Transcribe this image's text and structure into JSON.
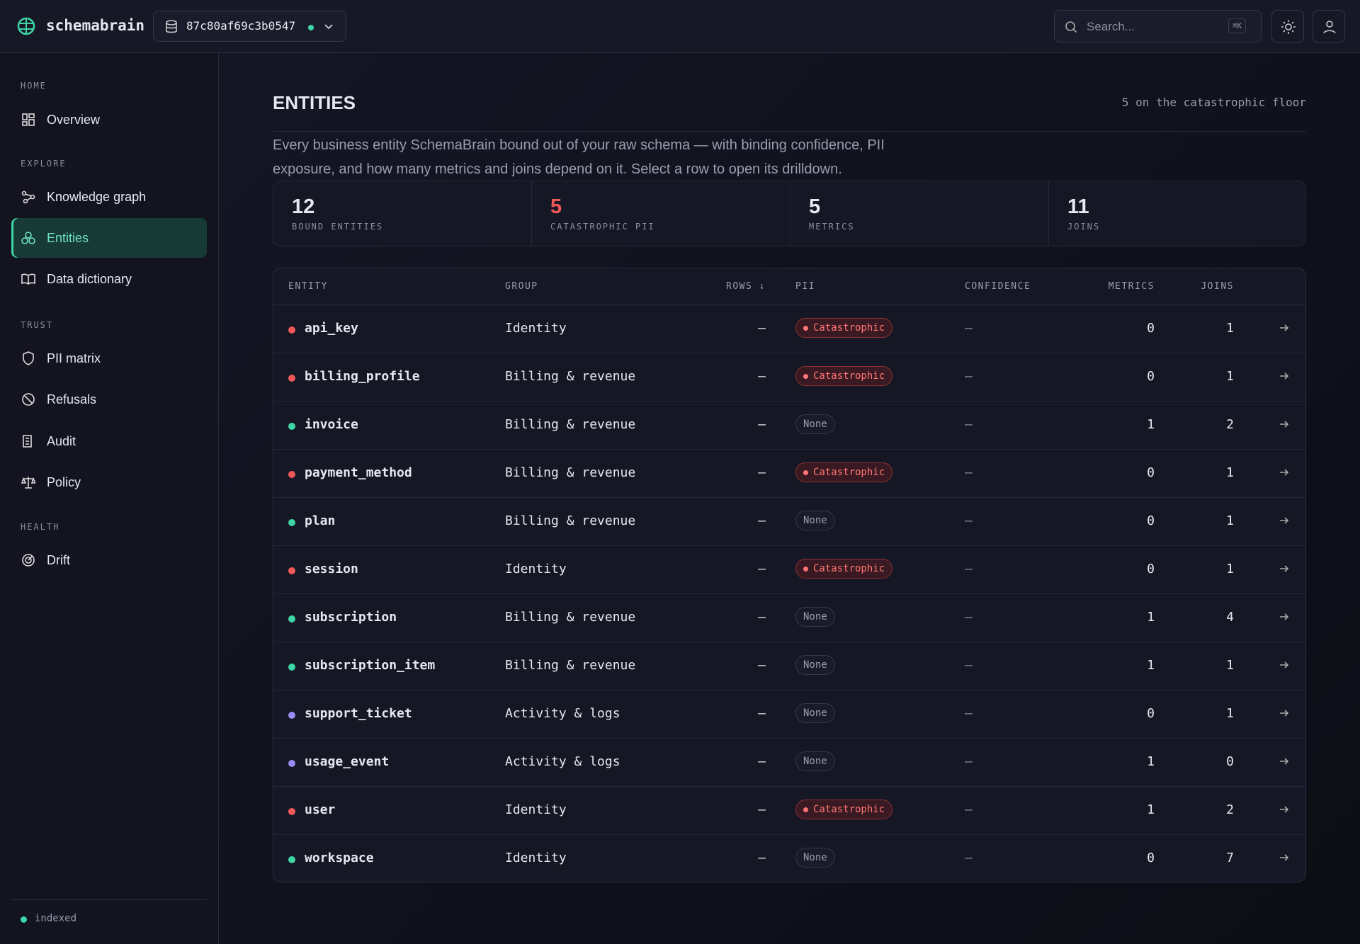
{
  "header": {
    "brand": "schemabrain",
    "database": "87c80af69c3b0547",
    "search_placeholder": "Search...",
    "shortcut": "⌘K"
  },
  "sidebar": {
    "sections": [
      {
        "label": "HOME",
        "items": [
          "Overview"
        ]
      },
      {
        "label": "EXPLORE",
        "items": [
          "Knowledge graph",
          "Entities",
          "Data dictionary"
        ]
      },
      {
        "label": "TRUST",
        "items": [
          "PII matrix",
          "Refusals",
          "Audit",
          "Policy"
        ]
      },
      {
        "label": "HEALTH",
        "items": [
          "Drift"
        ]
      }
    ],
    "status": "indexed"
  },
  "page": {
    "title": "ENTITIES",
    "note": "5 on the catastrophic floor",
    "description": "Every business entity SchemaBrain bound out of your raw schema — with binding confidence, PII exposure, and how many metrics and joins depend on it. Select a row to open its drilldown."
  },
  "stats": [
    {
      "value": "12",
      "label": "BOUND ENTITIES"
    },
    {
      "value": "5",
      "label": "CATASTROPHIC PII",
      "color": "#f0585a"
    },
    {
      "value": "5",
      "label": "METRICS"
    },
    {
      "value": "11",
      "label": "JOINS"
    }
  ],
  "table": {
    "columns": [
      "ENTITY",
      "GROUP",
      "ROWS ↓",
      "PII",
      "CONFIDENCE",
      "METRICS",
      "JOINS"
    ],
    "rows": [
      {
        "dot": "#f0585a",
        "entity": "api_key",
        "group": "Identity",
        "rows": "—",
        "pii": "Catastrophic",
        "confidence": "—",
        "metrics": "0",
        "joins": "1"
      },
      {
        "dot": "#f0585a",
        "entity": "billing_profile",
        "group": "Billing & revenue",
        "rows": "—",
        "pii": "Catastrophic",
        "confidence": "—",
        "metrics": "0",
        "joins": "1"
      },
      {
        "dot": "#3ed6a5",
        "entity": "invoice",
        "group": "Billing & revenue",
        "rows": "—",
        "pii": "None",
        "confidence": "—",
        "metrics": "1",
        "joins": "2"
      },
      {
        "dot": "#f0585a",
        "entity": "payment_method",
        "group": "Billing & revenue",
        "rows": "—",
        "pii": "Catastrophic",
        "confidence": "—",
        "metrics": "0",
        "joins": "1"
      },
      {
        "dot": "#3ed6a5",
        "entity": "plan",
        "group": "Billing & revenue",
        "rows": "—",
        "pii": "None",
        "confidence": "—",
        "metrics": "0",
        "joins": "1"
      },
      {
        "dot": "#f0585a",
        "entity": "session",
        "group": "Identity",
        "rows": "—",
        "pii": "Catastrophic",
        "confidence": "—",
        "metrics": "0",
        "joins": "1"
      },
      {
        "dot": "#3ed6a5",
        "entity": "subscription",
        "group": "Billing & revenue",
        "rows": "—",
        "pii": "None",
        "confidence": "—",
        "metrics": "1",
        "joins": "4"
      },
      {
        "dot": "#3ed6a5",
        "entity": "subscription_item",
        "group": "Billing & revenue",
        "rows": "—",
        "pii": "None",
        "confidence": "—",
        "metrics": "1",
        "joins": "1"
      },
      {
        "dot": "#9a8cf5",
        "entity": "support_ticket",
        "group": "Activity & logs",
        "rows": "—",
        "pii": "None",
        "confidence": "—",
        "metrics": "0",
        "joins": "1"
      },
      {
        "dot": "#9a8cf5",
        "entity": "usage_event",
        "group": "Activity & logs",
        "rows": "—",
        "pii": "None",
        "confidence": "—",
        "metrics": "1",
        "joins": "0"
      },
      {
        "dot": "#f0585a",
        "entity": "user",
        "group": "Identity",
        "rows": "—",
        "pii": "Catastrophic",
        "confidence": "—",
        "metrics": "1",
        "joins": "2"
      },
      {
        "dot": "#3ed6a5",
        "entity": "workspace",
        "group": "Identity",
        "rows": "—",
        "pii": "None",
        "confidence": "—",
        "metrics": "0",
        "joins": "7"
      }
    ]
  }
}
